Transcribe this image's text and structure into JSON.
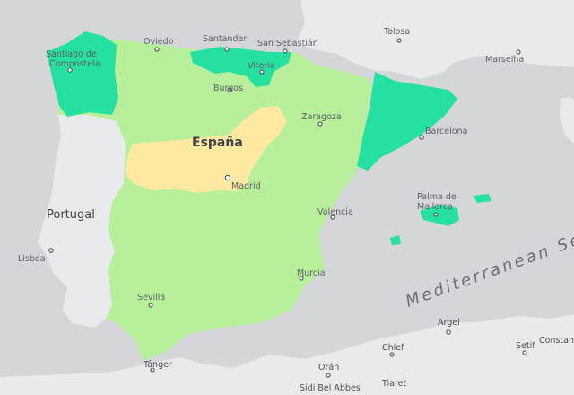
{
  "map": {
    "colors": {
      "sea": "#d4d6d9",
      "land_other": "#e9eaeb",
      "spain_light_green": "#b7ef9a",
      "spain_teal": "#25e0a1",
      "spain_yellow": "#fde9a0"
    },
    "country_labels": {
      "spain": "España",
      "portugal": "Portugal"
    },
    "sea_label": "Mediterranean Sea",
    "cities": {
      "santiago_line1": "Santiago de",
      "santiago_line2": "Compostela",
      "oviedo": "Oviedo",
      "santander": "Santander",
      "san_sebastian": "San Sebastián",
      "vitoria": "Vitoria",
      "burgos": "Burgos",
      "zaragoza": "Zaragoza",
      "barcelona": "Barcelona",
      "madrid": "Madrid",
      "valencia": "Valencia",
      "palma_line1": "Palma de",
      "palma_line2": "Mallorca",
      "murcia": "Murcia",
      "sevilla": "Sevilla",
      "lisboa": "Lisboa",
      "tolosa": "Tolosa",
      "marselha": "Marselha",
      "tanger": "Tánger",
      "oran": "Orán",
      "sidi_bel_abbes": "Sidi Bel Abbes",
      "argel": "Argel",
      "chlef": "Chlef",
      "tiaret": "Tiaret",
      "setif": "Setif",
      "constantine": "Constan"
    }
  }
}
